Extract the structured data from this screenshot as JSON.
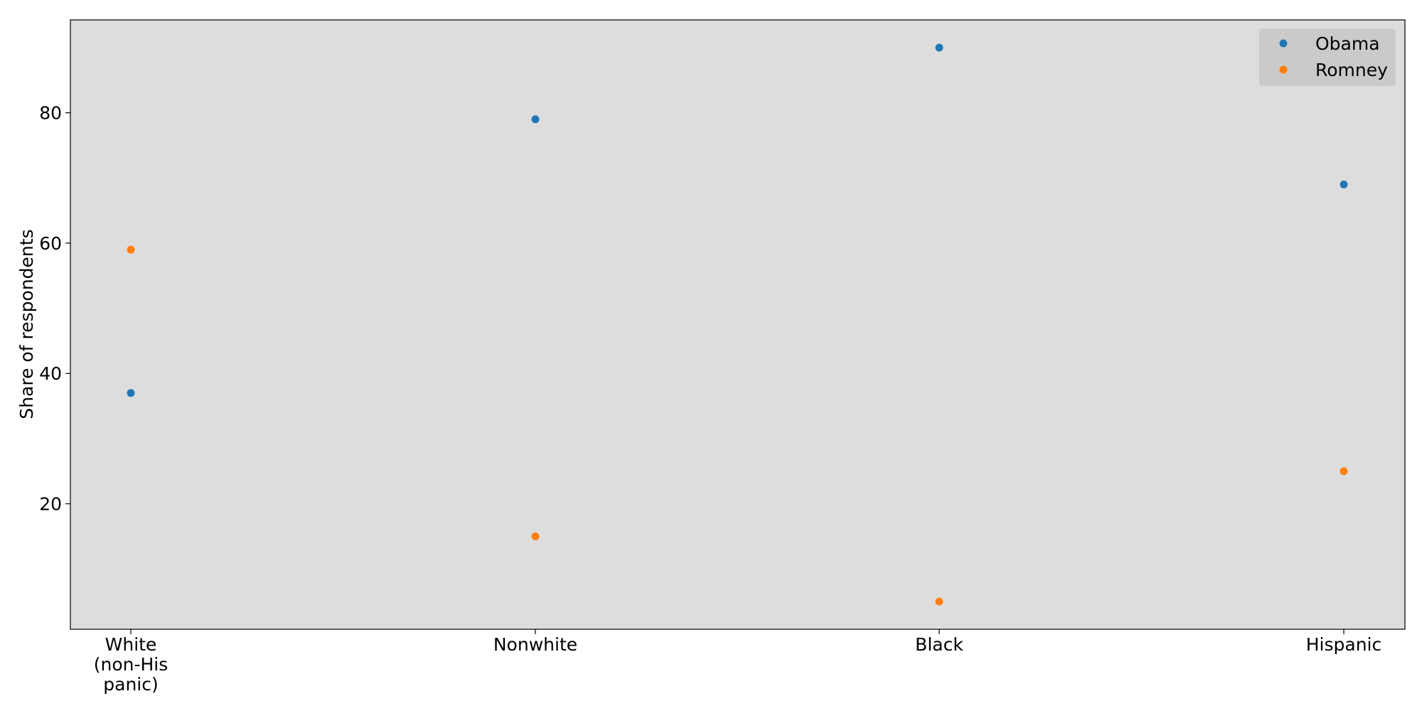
{
  "chart_data": {
    "type": "scatter",
    "title": "",
    "xlabel": "",
    "ylabel": "Share of respondents",
    "categories": [
      [
        "White",
        "(non-His",
        "panic)"
      ],
      [
        "Nonwhite"
      ],
      [
        "Black"
      ],
      [
        "Hispanic"
      ]
    ],
    "series": [
      {
        "name": "Obama",
        "color": "#1f77b4",
        "values": [
          37,
          79,
          90,
          69
        ]
      },
      {
        "name": "Romney",
        "color": "#ff7f0e",
        "values": [
          59,
          15,
          5,
          25
        ]
      }
    ],
    "ylim": [
      0.75,
      94.25
    ],
    "yticks": [
      20,
      40,
      60,
      80
    ],
    "grid": false,
    "legend_position": "top-right",
    "plot_background": "#dddddd",
    "legend_background": "#c8c8c8"
  }
}
